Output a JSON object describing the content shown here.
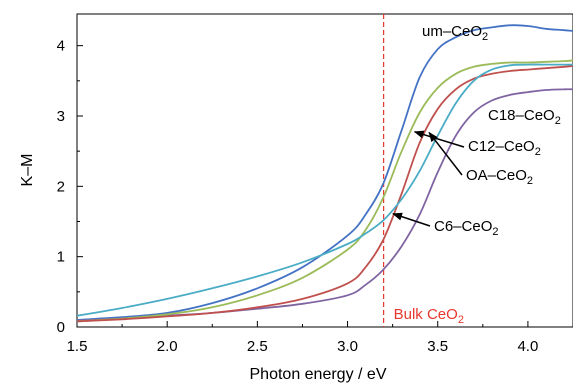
{
  "chart_data": {
    "type": "line",
    "xlabel": "Photon energy / eV",
    "ylabel": "K–M",
    "xlim": [
      1.5,
      4.25
    ],
    "ylim": [
      0,
      4.45
    ],
    "xticks": [
      "1.5",
      "2.0",
      "2.5",
      "3.0",
      "3.5",
      "4.0"
    ],
    "yticks": [
      "0",
      "1",
      "2",
      "3",
      "4"
    ],
    "grid": false,
    "legend": "none",
    "series": [
      {
        "name": "um-CeO₂",
        "color": "#4472c4",
        "x": [
          1.5,
          1.75,
          2.0,
          2.25,
          2.5,
          2.75,
          3.0,
          3.1,
          3.2,
          3.3,
          3.4,
          3.5,
          3.6,
          3.7,
          3.8,
          3.9,
          4.0,
          4.1,
          4.2,
          4.25
        ],
        "y": [
          0.1,
          0.14,
          0.2,
          0.34,
          0.55,
          0.85,
          1.3,
          1.6,
          2.05,
          2.8,
          3.55,
          3.95,
          4.12,
          4.22,
          4.26,
          4.29,
          4.28,
          4.24,
          4.22,
          4.21
        ]
      },
      {
        "name": "C18–CeO₂",
        "color": "#8064a2",
        "x": [
          1.5,
          1.75,
          2.0,
          2.25,
          2.5,
          2.75,
          3.0,
          3.1,
          3.2,
          3.3,
          3.4,
          3.5,
          3.6,
          3.7,
          3.8,
          3.9,
          4.0,
          4.1,
          4.2,
          4.25
        ],
        "y": [
          0.09,
          0.12,
          0.16,
          0.2,
          0.26,
          0.33,
          0.45,
          0.6,
          0.82,
          1.15,
          1.6,
          2.2,
          2.72,
          3.05,
          3.22,
          3.3,
          3.34,
          3.37,
          3.38,
          3.38
        ]
      },
      {
        "name": "C12–CeO₂",
        "color": "#9bbb59",
        "x": [
          1.5,
          1.75,
          2.0,
          2.25,
          2.5,
          2.75,
          3.0,
          3.1,
          3.2,
          3.3,
          3.4,
          3.5,
          3.6,
          3.7,
          3.8,
          3.9,
          4.0,
          4.1,
          4.2,
          4.25
        ],
        "y": [
          0.08,
          0.12,
          0.18,
          0.28,
          0.45,
          0.7,
          1.1,
          1.38,
          1.85,
          2.5,
          3.05,
          3.4,
          3.6,
          3.7,
          3.74,
          3.76,
          3.76,
          3.77,
          3.78,
          3.79
        ]
      },
      {
        "name": "OA–CeO₂",
        "color": "#c0504d",
        "x": [
          1.5,
          1.75,
          2.0,
          2.25,
          2.5,
          2.75,
          3.0,
          3.1,
          3.2,
          3.3,
          3.4,
          3.5,
          3.6,
          3.7,
          3.8,
          3.9,
          4.0,
          4.1,
          4.2,
          4.25
        ],
        "y": [
          0.08,
          0.11,
          0.15,
          0.2,
          0.28,
          0.4,
          0.62,
          0.85,
          1.25,
          1.9,
          2.62,
          3.1,
          3.38,
          3.53,
          3.6,
          3.64,
          3.66,
          3.68,
          3.7,
          3.71
        ]
      },
      {
        "name": "C6–CeO₂",
        "color": "#4bacc6",
        "x": [
          1.5,
          1.75,
          2.0,
          2.25,
          2.5,
          2.75,
          3.0,
          3.1,
          3.2,
          3.3,
          3.4,
          3.5,
          3.6,
          3.7,
          3.8,
          3.9,
          4.0,
          4.1,
          4.2,
          4.25
        ],
        "y": [
          0.16,
          0.27,
          0.4,
          0.55,
          0.72,
          0.92,
          1.18,
          1.33,
          1.52,
          1.82,
          2.22,
          2.72,
          3.18,
          3.5,
          3.66,
          3.72,
          3.73,
          3.73,
          3.73,
          3.73
        ]
      }
    ],
    "vline": {
      "x": 3.2,
      "color": "#e8382d",
      "label": "Bulk CeO",
      "label_sub": "2"
    },
    "annotations": [
      {
        "text": "um–CeO",
        "sub": "2",
        "series": "um-CeO₂",
        "arrow": false
      },
      {
        "text": "C18–CeO",
        "sub": "2",
        "series": "C18–CeO₂",
        "arrow": false
      },
      {
        "text": "C12–CeO",
        "sub": "2",
        "series": "C12–CeO₂",
        "arrow": true
      },
      {
        "text": "OA–CeO",
        "sub": "2",
        "series": "OA–CeO₂",
        "arrow": true
      },
      {
        "text": "C6–CeO",
        "sub": "2",
        "series": "C6–CeO₂",
        "arrow": true
      }
    ]
  }
}
